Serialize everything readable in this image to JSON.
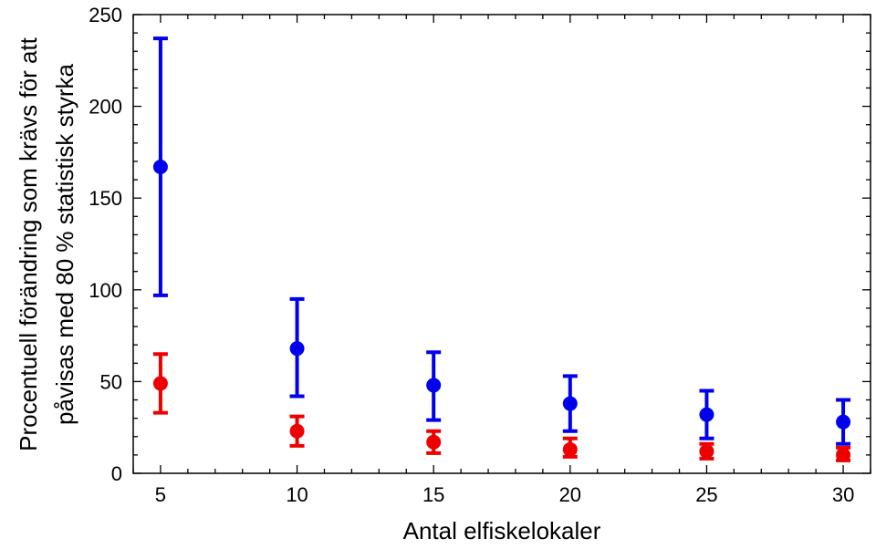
{
  "chart_data": {
    "type": "scatter",
    "xlabel": "Antal elfiskelokaler",
    "ylabel_lines": [
      "Procentuell förändring som krävs för att",
      "påvisas med 80 % statistisk styrka"
    ],
    "xlim": [
      4,
      31
    ],
    "ylim": [
      0,
      250
    ],
    "x_ticks": [
      5,
      10,
      15,
      20,
      25,
      30
    ],
    "y_ticks": [
      0,
      50,
      100,
      150,
      200,
      250
    ],
    "grid": false,
    "series": [
      {
        "color": "#0000ee",
        "x": [
          5,
          10,
          15,
          20,
          25,
          30
        ],
        "y": [
          167,
          68,
          48,
          38,
          32,
          28
        ],
        "err_low": [
          97,
          42,
          29,
          23,
          19,
          16
        ],
        "err_high": [
          237,
          95,
          66,
          53,
          45,
          40
        ]
      },
      {
        "color": "#ee0000",
        "x": [
          5,
          10,
          15,
          20,
          25,
          30
        ],
        "y": [
          49,
          23,
          17,
          13,
          12,
          10
        ],
        "err_low": [
          33,
          15,
          11,
          9,
          8,
          7
        ],
        "err_high": [
          65,
          31,
          23,
          19,
          16,
          14
        ]
      }
    ]
  }
}
